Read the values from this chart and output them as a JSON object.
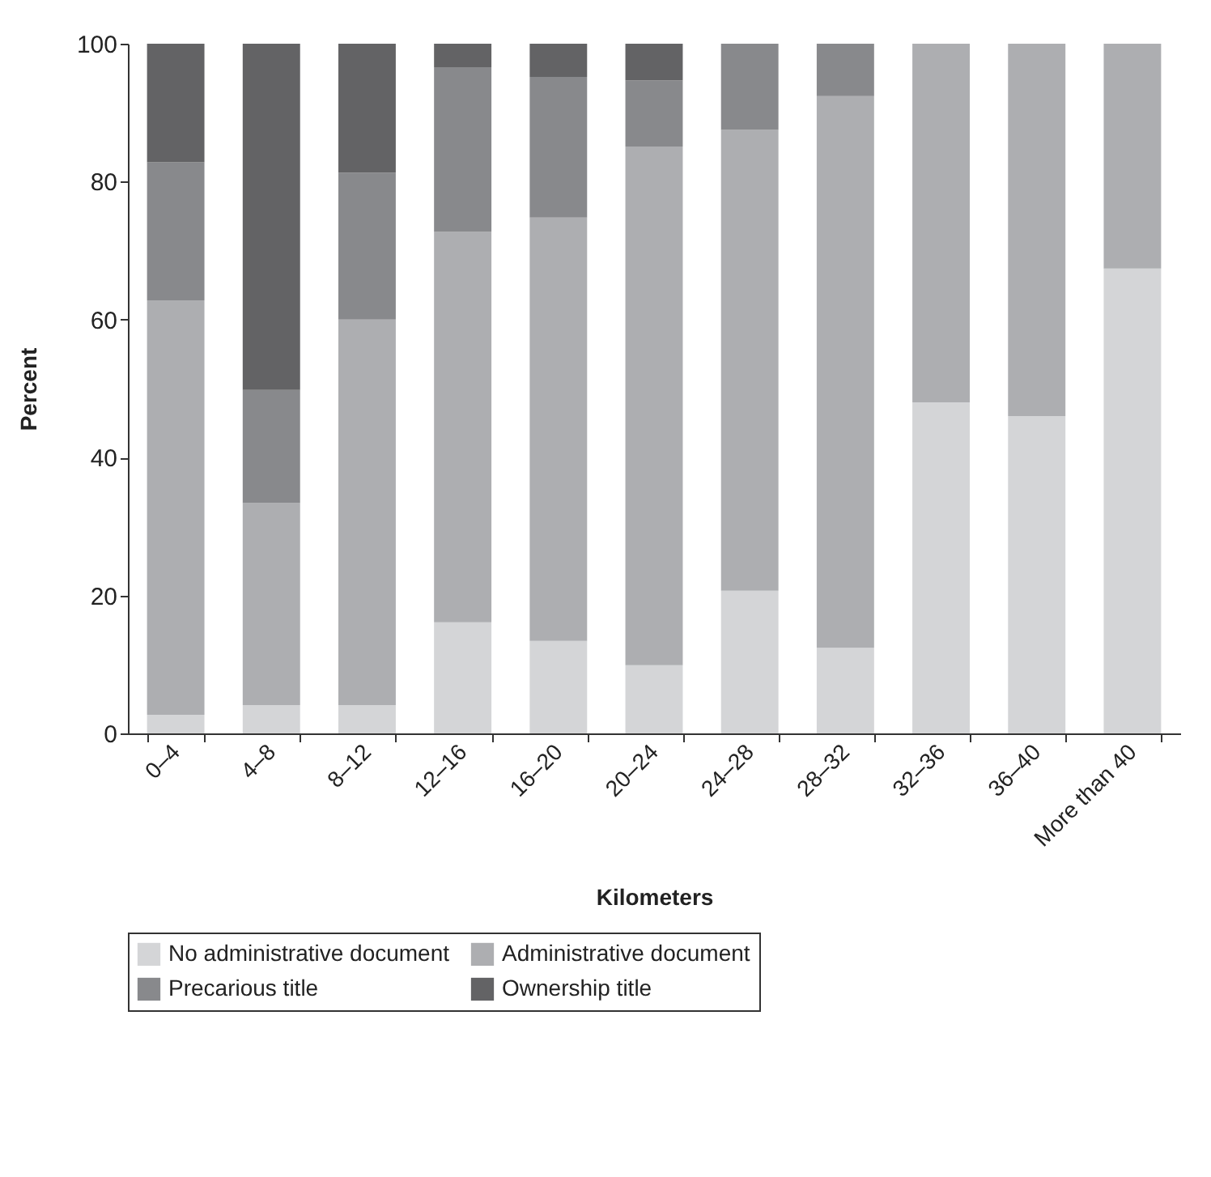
{
  "chart_data": {
    "type": "bar",
    "stacked": true,
    "xlabel": "Kilometers",
    "ylabel": "Percent",
    "categories": [
      "0–4",
      "4–8",
      "8–12",
      "12–16",
      "16–20",
      "20–24",
      "24–28",
      "28–32",
      "32–36",
      "36–40",
      "More than 40"
    ],
    "series": [
      {
        "name": "No administrative document",
        "color": "#d4d5d7",
        "values": [
          2.7,
          4.1,
          4.1,
          16.1,
          13.4,
          9.9,
          20.7,
          12.4,
          48.0,
          46.0,
          67.4
        ]
      },
      {
        "name": "Administrative document",
        "color": "#adaeb1",
        "values": [
          60.1,
          29.3,
          55.9,
          56.6,
          61.4,
          75.2,
          66.8,
          80.0,
          52.0,
          54.0,
          32.6
        ]
      },
      {
        "name": "Precarious title",
        "color": "#88898c",
        "values": [
          20.0,
          16.4,
          21.3,
          23.9,
          20.4,
          9.6,
          12.5,
          7.6,
          null,
          null,
          null
        ]
      },
      {
        "name": "Ownership title",
        "color": "#636365",
        "values": [
          17.2,
          50.2,
          18.7,
          3.4,
          4.8,
          5.3,
          null,
          null,
          null,
          null,
          null
        ]
      }
    ],
    "ylim": [
      0,
      100
    ],
    "yticks": [
      0,
      20,
      40,
      60,
      80,
      100
    ],
    "grid": false,
    "legend": "bottom"
  }
}
